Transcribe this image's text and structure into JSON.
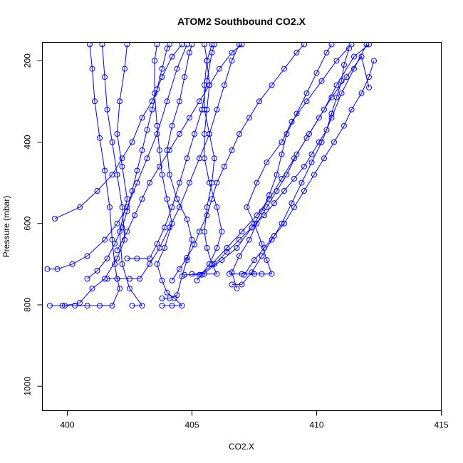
{
  "chart_data": {
    "type": "line",
    "title": "ATOM2 Southbound CO2.X",
    "xlabel": "CO2.X",
    "ylabel": "Pressure (mbar)",
    "xlim": [
      399,
      415
    ],
    "ylim": [
      1060,
      155
    ],
    "y_reversed": true,
    "grid": false,
    "x_ticks": [
      400,
      405,
      410,
      415
    ],
    "y_ticks": [
      200,
      400,
      600,
      800,
      1000
    ],
    "series_color": "#0000ff",
    "markers": "open-circle",
    "series": [
      {
        "points": [
          [
            399.3,
            802
          ],
          [
            399.8,
            802
          ],
          [
            400.3,
            802
          ],
          [
            400.8,
            802
          ],
          [
            401.3,
            802
          ],
          [
            401.8,
            802
          ],
          [
            402.1,
            760
          ],
          [
            402.0,
            736
          ],
          [
            401.9,
            700
          ],
          [
            401.8,
            640
          ],
          [
            401.7,
            560
          ],
          [
            401.5,
            470
          ],
          [
            401.3,
            390
          ],
          [
            401.1,
            300
          ],
          [
            401.0,
            220
          ],
          [
            400.9,
            160
          ]
        ]
      },
      {
        "points": [
          [
            399.9,
            802
          ],
          [
            400.5,
            795
          ],
          [
            401.0,
            760
          ],
          [
            401.5,
            736
          ],
          [
            402.0,
            686
          ],
          [
            402.3,
            640
          ],
          [
            402.2,
            560
          ],
          [
            402.0,
            480
          ],
          [
            401.8,
            400
          ],
          [
            401.6,
            320
          ],
          [
            401.5,
            240
          ],
          [
            401.4,
            160
          ]
        ]
      },
      {
        "points": [
          [
            402.6,
            802
          ],
          [
            403.0,
            802
          ],
          [
            402.5,
            760
          ],
          [
            402.2,
            700
          ],
          [
            402.1,
            620
          ],
          [
            402.4,
            540
          ],
          [
            402.2,
            460
          ],
          [
            402.0,
            380
          ],
          [
            402.1,
            300
          ],
          [
            402.3,
            220
          ],
          [
            402.4,
            160
          ]
        ]
      },
      {
        "points": [
          [
            399.5,
            588
          ],
          [
            400.5,
            560
          ],
          [
            401.2,
            520
          ],
          [
            401.8,
            480
          ],
          [
            402.2,
            440
          ],
          [
            402.6,
            400
          ],
          [
            403.0,
            340
          ],
          [
            403.4,
            300
          ],
          [
            403.8,
            240
          ],
          [
            404.2,
            190
          ],
          [
            404.6,
            160
          ]
        ]
      },
      {
        "points": [
          [
            399.2,
            712
          ],
          [
            399.6,
            712
          ],
          [
            400.2,
            700
          ],
          [
            400.8,
            680
          ],
          [
            401.5,
            640
          ],
          [
            402.0,
            600
          ],
          [
            402.4,
            560
          ],
          [
            402.8,
            500
          ],
          [
            403.2,
            440
          ],
          [
            403.6,
            380
          ],
          [
            404.0,
            300
          ],
          [
            404.4,
            220
          ],
          [
            404.8,
            160
          ]
        ]
      },
      {
        "points": [
          [
            403.8,
            802
          ],
          [
            404.2,
            802
          ],
          [
            404.6,
            802
          ],
          [
            404.3,
            784
          ],
          [
            404.0,
            770
          ],
          [
            403.8,
            740
          ],
          [
            403.6,
            700
          ],
          [
            403.9,
            660
          ],
          [
            404.2,
            600
          ],
          [
            404.0,
            540
          ],
          [
            403.8,
            480
          ],
          [
            403.7,
            420
          ],
          [
            403.6,
            360
          ],
          [
            403.5,
            280
          ],
          [
            403.5,
            200
          ],
          [
            403.6,
            160
          ]
        ]
      },
      {
        "points": [
          [
            403.8,
            784
          ],
          [
            404.1,
            784
          ],
          [
            404.4,
            776
          ],
          [
            404.6,
            730
          ],
          [
            404.8,
            690
          ],
          [
            405.0,
            640
          ],
          [
            404.8,
            590
          ],
          [
            404.4,
            540
          ],
          [
            404.1,
            480
          ],
          [
            404.0,
            420
          ],
          [
            404.2,
            360
          ],
          [
            404.5,
            300
          ],
          [
            404.7,
            240
          ],
          [
            404.9,
            180
          ],
          [
            405.0,
            160
          ]
        ]
      },
      {
        "points": [
          [
            405.0,
            724
          ],
          [
            405.5,
            724
          ],
          [
            406.0,
            724
          ],
          [
            405.8,
            700
          ],
          [
            405.6,
            660
          ],
          [
            405.5,
            620
          ],
          [
            405.6,
            560
          ],
          [
            405.8,
            500
          ],
          [
            405.9,
            440
          ],
          [
            405.7,
            380
          ],
          [
            405.5,
            320
          ],
          [
            405.5,
            260
          ],
          [
            405.6,
            200
          ],
          [
            405.8,
            160
          ]
        ]
      },
      {
        "points": [
          [
            405.2,
            740
          ],
          [
            405.7,
            700
          ],
          [
            406.0,
            660
          ],
          [
            406.2,
            620
          ],
          [
            406.0,
            560
          ],
          [
            405.7,
            500
          ],
          [
            405.5,
            440
          ],
          [
            405.5,
            380
          ],
          [
            405.6,
            320
          ],
          [
            405.7,
            260
          ],
          [
            405.6,
            200
          ],
          [
            405.5,
            160
          ]
        ]
      },
      {
        "points": [
          [
            406.5,
            724
          ],
          [
            407.0,
            724
          ],
          [
            407.5,
            724
          ],
          [
            407.8,
            724
          ],
          [
            408.2,
            724
          ],
          [
            408.0,
            690
          ],
          [
            407.8,
            650
          ],
          [
            407.5,
            600
          ],
          [
            407.2,
            560
          ],
          [
            407.6,
            500
          ],
          [
            408.0,
            450
          ],
          [
            408.6,
            400
          ],
          [
            409.0,
            350
          ],
          [
            409.6,
            300
          ],
          [
            410.2,
            250
          ],
          [
            410.8,
            200
          ],
          [
            411.4,
            160
          ]
        ]
      },
      {
        "points": [
          [
            406.6,
            750
          ],
          [
            407.0,
            750
          ],
          [
            407.4,
            720
          ],
          [
            407.8,
            680
          ],
          [
            408.2,
            640
          ],
          [
            408.6,
            600
          ],
          [
            409.0,
            550
          ],
          [
            409.4,
            500
          ],
          [
            409.8,
            450
          ],
          [
            410.2,
            400
          ],
          [
            410.6,
            340
          ],
          [
            411.0,
            280
          ],
          [
            411.5,
            220
          ],
          [
            412.0,
            160
          ]
        ]
      },
      {
        "points": [
          [
            406.8,
            760
          ],
          [
            406.6,
            720
          ],
          [
            406.9,
            680
          ],
          [
            407.3,
            640
          ],
          [
            407.6,
            600
          ],
          [
            408.0,
            560
          ],
          [
            408.4,
            520
          ],
          [
            408.8,
            480
          ],
          [
            409.2,
            430
          ],
          [
            409.7,
            380
          ],
          [
            410.3,
            320
          ],
          [
            410.8,
            260
          ],
          [
            411.5,
            190
          ],
          [
            412.1,
            160
          ]
        ]
      },
      {
        "points": [
          [
            405.4,
            726
          ],
          [
            406.2,
            690
          ],
          [
            406.8,
            660
          ],
          [
            407.4,
            610
          ],
          [
            407.8,
            570
          ],
          [
            408.1,
            530
          ],
          [
            408.4,
            480
          ],
          [
            408.6,
            430
          ],
          [
            408.8,
            380
          ],
          [
            409.2,
            330
          ],
          [
            409.6,
            280
          ],
          [
            410.0,
            230
          ],
          [
            410.4,
            180
          ],
          [
            410.6,
            160
          ]
        ]
      },
      {
        "points": [
          [
            405.8,
            700
          ],
          [
            406.4,
            660
          ],
          [
            407.0,
            620
          ],
          [
            407.6,
            580
          ],
          [
            408.1,
            540
          ],
          [
            408.6,
            490
          ],
          [
            409.1,
            440
          ],
          [
            409.6,
            390
          ],
          [
            410.1,
            340
          ],
          [
            410.6,
            290
          ],
          [
            411.2,
            240
          ],
          [
            411.8,
            190
          ],
          [
            412.1,
            266
          ]
        ]
      },
      {
        "points": [
          [
            402.4,
            686
          ],
          [
            402.8,
            686
          ],
          [
            403.3,
            686
          ],
          [
            403.6,
            650
          ],
          [
            403.9,
            610
          ],
          [
            404.2,
            560
          ],
          [
            404.5,
            500
          ],
          [
            404.8,
            440
          ],
          [
            405.1,
            380
          ],
          [
            405.4,
            320
          ],
          [
            405.6,
            250
          ],
          [
            405.8,
            180
          ],
          [
            405.9,
            160
          ]
        ]
      },
      {
        "points": [
          [
            401.6,
            736
          ],
          [
            402.0,
            736
          ],
          [
            402.5,
            736
          ],
          [
            402.9,
            736
          ],
          [
            403.3,
            700
          ],
          [
            403.7,
            660
          ],
          [
            404.1,
            610
          ],
          [
            404.5,
            560
          ],
          [
            404.9,
            500
          ],
          [
            405.3,
            440
          ],
          [
            405.7,
            380
          ],
          [
            406.0,
            320
          ],
          [
            406.3,
            260
          ],
          [
            406.6,
            200
          ],
          [
            406.9,
            160
          ]
        ]
      },
      {
        "points": [
          [
            402.0,
            666
          ],
          [
            402.4,
            620
          ],
          [
            402.7,
            580
          ],
          [
            403.0,
            540
          ],
          [
            403.3,
            500
          ],
          [
            403.7,
            460
          ],
          [
            404.1,
            420
          ],
          [
            404.5,
            380
          ],
          [
            404.9,
            340
          ],
          [
            405.3,
            300
          ],
          [
            405.7,
            260
          ],
          [
            406.1,
            220
          ],
          [
            406.6,
            180
          ],
          [
            407.0,
            160
          ]
        ]
      },
      {
        "points": [
          [
            400.8,
            736
          ],
          [
            401.2,
            716
          ],
          [
            401.6,
            686
          ],
          [
            401.9,
            650
          ],
          [
            402.2,
            610
          ],
          [
            402.4,
            570
          ],
          [
            402.6,
            520
          ],
          [
            402.8,
            470
          ],
          [
            403.0,
            420
          ],
          [
            403.2,
            370
          ],
          [
            403.4,
            320
          ],
          [
            403.6,
            270
          ],
          [
            403.8,
            220
          ],
          [
            404.0,
            170
          ],
          [
            404.1,
            160
          ]
        ]
      },
      {
        "points": [
          [
            407.1,
            726
          ],
          [
            407.5,
            690
          ],
          [
            407.9,
            660
          ],
          [
            408.3,
            630
          ],
          [
            408.7,
            600
          ],
          [
            409.1,
            560
          ],
          [
            409.5,
            520
          ],
          [
            409.9,
            480
          ],
          [
            410.3,
            440
          ],
          [
            410.7,
            400
          ],
          [
            411.1,
            360
          ],
          [
            411.4,
            320
          ],
          [
            411.8,
            280
          ],
          [
            412.1,
            240
          ],
          [
            412.3,
            200
          ]
        ]
      },
      {
        "points": [
          [
            404.7,
            726
          ],
          [
            405.3,
            726
          ],
          [
            405.9,
            700
          ],
          [
            406.4,
            670
          ],
          [
            406.9,
            640
          ],
          [
            407.4,
            610
          ],
          [
            407.9,
            580
          ],
          [
            408.3,
            550
          ],
          [
            408.7,
            520
          ],
          [
            409.1,
            490
          ],
          [
            409.5,
            460
          ],
          [
            409.8,
            430
          ],
          [
            410.1,
            400
          ],
          [
            410.4,
            370
          ],
          [
            410.6,
            330
          ],
          [
            410.8,
            290
          ],
          [
            411.0,
            250
          ],
          [
            411.1,
            210
          ],
          [
            411.3,
            170
          ]
        ]
      },
      {
        "points": [
          [
            404.2,
            740
          ],
          [
            404.5,
            712
          ],
          [
            404.8,
            684
          ],
          [
            405.1,
            652
          ],
          [
            405.3,
            620
          ],
          [
            405.6,
            580
          ],
          [
            405.8,
            540
          ],
          [
            406.0,
            500
          ],
          [
            406.3,
            460
          ],
          [
            406.6,
            420
          ],
          [
            406.9,
            380
          ],
          [
            407.3,
            340
          ],
          [
            407.7,
            300
          ],
          [
            408.2,
            260
          ],
          [
            408.7,
            220
          ],
          [
            409.2,
            180
          ],
          [
            409.5,
            160
          ]
        ]
      }
    ]
  }
}
